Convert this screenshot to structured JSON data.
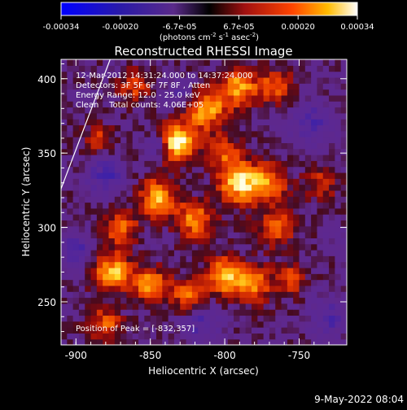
{
  "colorbar": {
    "ticks": [
      "-0.00034",
      "-0.00020",
      "-6.7e-05",
      "6.7e-05",
      "0.00020",
      "0.00034"
    ],
    "unit_label": "(photons cm",
    "unit_exp1": "-2",
    "unit_mid": " s",
    "unit_exp2": "-1",
    "unit_tail": " asec",
    "unit_exp3": "-2",
    "unit_close": ")"
  },
  "chart_data": {
    "type": "heatmap",
    "title": "Reconstructed RHESSI Image",
    "xlabel": "Heliocentric X (arcsec)",
    "ylabel": "Heliocentric Y (arcsec)",
    "xlim": [
      -910,
      -718
    ],
    "ylim": [
      221,
      413
    ],
    "x_ticks": [
      -900,
      -850,
      -800,
      -750
    ],
    "y_ticks": [
      250,
      300,
      350,
      400
    ],
    "colormap": "RHESSI blue-purple-red-yellow-white",
    "vmin": -0.00034,
    "vmax": 0.00034,
    "peak": [
      -832,
      357
    ],
    "annotations": [
      "12-Mar-2012 14:31:24.000 to 14:37:24.000",
      "Detectors: 3F 5F 6F 7F 8F , Atten",
      "Energy Range: 12.0 - 25.0 keV",
      "Clean    Total counts: 4.06E+05"
    ],
    "peak_label": "Position of Peak = [-832,357]",
    "limb_line": [
      [
        -910,
        326
      ],
      [
        -877,
        413
      ]
    ],
    "blobs": [
      {
        "x": -832,
        "y": 357,
        "amp": 1.0,
        "s": 9
      },
      {
        "x": -812,
        "y": 380,
        "amp": 0.75,
        "s": 10
      },
      {
        "x": -790,
        "y": 395,
        "amp": 0.7,
        "s": 9
      },
      {
        "x": -765,
        "y": 395,
        "amp": 0.55,
        "s": 8
      },
      {
        "x": -790,
        "y": 330,
        "amp": 0.85,
        "s": 10
      },
      {
        "x": -770,
        "y": 330,
        "amp": 0.6,
        "s": 9
      },
      {
        "x": -845,
        "y": 320,
        "amp": 0.75,
        "s": 9
      },
      {
        "x": -820,
        "y": 305,
        "amp": 0.65,
        "s": 9
      },
      {
        "x": -870,
        "y": 300,
        "amp": 0.6,
        "s": 8
      },
      {
        "x": -875,
        "y": 270,
        "amp": 0.8,
        "s": 9
      },
      {
        "x": -850,
        "y": 262,
        "amp": 0.7,
        "s": 8
      },
      {
        "x": -825,
        "y": 255,
        "amp": 0.55,
        "s": 8
      },
      {
        "x": -800,
        "y": 268,
        "amp": 0.8,
        "s": 9
      },
      {
        "x": -780,
        "y": 262,
        "amp": 0.6,
        "s": 9
      },
      {
        "x": -765,
        "y": 300,
        "amp": 0.55,
        "s": 9
      },
      {
        "x": -755,
        "y": 265,
        "amp": 0.5,
        "s": 7
      },
      {
        "x": -880,
        "y": 235,
        "amp": 0.55,
        "s": 8
      },
      {
        "x": -860,
        "y": 395,
        "amp": 0.45,
        "s": 8
      },
      {
        "x": -885,
        "y": 360,
        "amp": 0.4,
        "s": 7
      },
      {
        "x": -800,
        "y": 350,
        "amp": 0.5,
        "s": 8
      },
      {
        "x": -735,
        "y": 330,
        "amp": 0.4,
        "s": 8
      },
      {
        "x": -845,
        "y": 355,
        "amp": -0.6,
        "s": 5
      },
      {
        "x": -880,
        "y": 335,
        "amp": -0.5,
        "s": 9
      },
      {
        "x": -830,
        "y": 390,
        "amp": -0.35,
        "s": 7
      },
      {
        "x": -740,
        "y": 370,
        "amp": -0.45,
        "s": 10
      },
      {
        "x": -815,
        "y": 235,
        "amp": -0.4,
        "s": 9
      },
      {
        "x": -730,
        "y": 240,
        "amp": -0.4,
        "s": 9
      },
      {
        "x": -900,
        "y": 285,
        "amp": -0.4,
        "s": 8
      }
    ]
  },
  "footer": {
    "timestamp": "9-May-2022 08:04"
  }
}
